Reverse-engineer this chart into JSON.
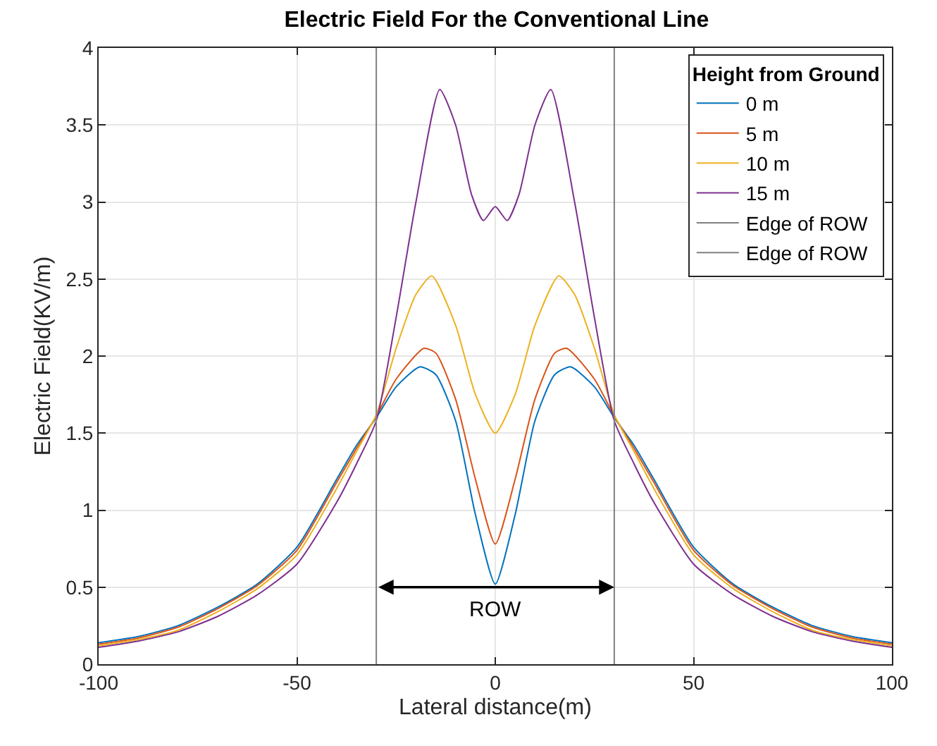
{
  "chart_data": {
    "type": "line",
    "title": "Electric Field For the Conventional Line",
    "xlabel": "Lateral distance(m)",
    "ylabel": "Electric Field(KV/m)",
    "legend_title": "Height from Ground",
    "legend": "top right",
    "grid": true,
    "marker": "none",
    "line_style": "solid",
    "xlim": [
      -100,
      100
    ],
    "xticks": [
      -100,
      -50,
      0,
      50,
      100
    ],
    "ylim": [
      0,
      4
    ],
    "yticks": [
      0,
      0.5,
      1,
      1.5,
      2,
      2.5,
      3,
      3.5,
      4
    ],
    "series": [
      {
        "name": "0 m",
        "color": "#0072bd",
        "x": [
          -100,
          -90,
          -80,
          -70,
          -60,
          -50,
          -40,
          -35,
          -30,
          -25,
          -19,
          -15,
          -10,
          -5,
          0,
          5,
          10,
          15,
          19,
          25,
          30,
          35,
          40,
          50,
          60,
          70,
          80,
          90,
          100
        ],
        "values": [
          0.14,
          0.18,
          0.25,
          0.37,
          0.52,
          0.76,
          1.2,
          1.42,
          1.6,
          1.8,
          1.93,
          1.88,
          1.58,
          0.97,
          0.52,
          0.97,
          1.58,
          1.88,
          1.93,
          1.8,
          1.6,
          1.42,
          1.2,
          0.76,
          0.52,
          0.37,
          0.25,
          0.18,
          0.14
        ]
      },
      {
        "name": "5 m",
        "color": "#d95319",
        "x": [
          -100,
          -90,
          -80,
          -70,
          -60,
          -50,
          -40,
          -35,
          -30,
          -25,
          -18,
          -15,
          -10,
          -5,
          0,
          5,
          10,
          15,
          18,
          25,
          30,
          35,
          40,
          50,
          60,
          70,
          80,
          90,
          100
        ],
        "values": [
          0.13,
          0.17,
          0.24,
          0.36,
          0.51,
          0.74,
          1.18,
          1.4,
          1.61,
          1.85,
          2.05,
          2.02,
          1.72,
          1.2,
          0.78,
          1.2,
          1.72,
          2.02,
          2.05,
          1.85,
          1.61,
          1.4,
          1.18,
          0.74,
          0.51,
          0.36,
          0.24,
          0.17,
          0.13
        ]
      },
      {
        "name": "10 m",
        "color": "#edb120",
        "x": [
          -100,
          -90,
          -80,
          -70,
          -60,
          -50,
          -40,
          -35,
          -30,
          -25,
          -20,
          -16,
          -10,
          -5,
          0,
          5,
          10,
          16,
          20,
          25,
          30,
          35,
          40,
          50,
          60,
          70,
          80,
          90,
          100
        ],
        "values": [
          0.12,
          0.16,
          0.22,
          0.34,
          0.49,
          0.71,
          1.14,
          1.38,
          1.62,
          2.05,
          2.4,
          2.52,
          2.2,
          1.75,
          1.5,
          1.75,
          2.2,
          2.52,
          2.4,
          2.05,
          1.62,
          1.38,
          1.14,
          0.71,
          0.49,
          0.34,
          0.22,
          0.16,
          0.12
        ]
      },
      {
        "name": "15 m",
        "color": "#7e2f8e",
        "x": [
          -100,
          -90,
          -80,
          -70,
          -60,
          -50,
          -40,
          -35,
          -30,
          -25,
          -20,
          -14,
          -10,
          -6,
          -3,
          0,
          3,
          6,
          10,
          14,
          20,
          25,
          30,
          35,
          40,
          50,
          60,
          70,
          80,
          90,
          100
        ],
        "values": [
          0.11,
          0.15,
          0.21,
          0.31,
          0.45,
          0.65,
          1.05,
          1.3,
          1.58,
          2.25,
          3.0,
          3.73,
          3.5,
          3.05,
          2.88,
          2.97,
          2.88,
          3.05,
          3.5,
          3.73,
          3.0,
          2.25,
          1.58,
          1.3,
          1.05,
          0.65,
          0.45,
          0.31,
          0.21,
          0.15,
          0.11
        ]
      },
      {
        "name": "Edge of ROW",
        "color": "#808080",
        "x": [
          -30,
          -30
        ],
        "values": [
          0,
          4
        ]
      },
      {
        "name": "Edge of ROW",
        "color": "#808080",
        "x": [
          30,
          30
        ],
        "values": [
          0,
          4
        ]
      }
    ],
    "annotations": [
      "ROW"
    ]
  }
}
